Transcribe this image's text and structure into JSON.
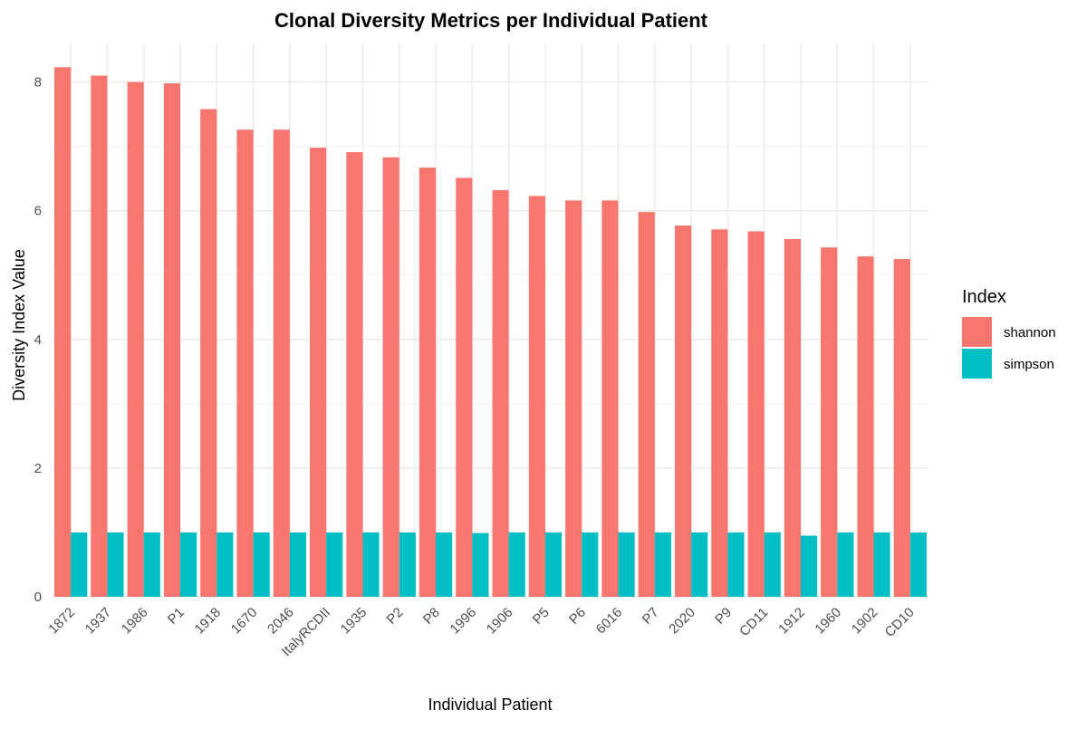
{
  "chart_data": {
    "type": "bar",
    "title": "Clonal Diversity Metrics per Individual Patient",
    "xlabel": "Individual Patient",
    "ylabel": "Diversity Index Value",
    "ylim": [
      0,
      8.6
    ],
    "yticks": [
      0,
      2,
      4,
      6,
      8
    ],
    "grid": true,
    "legend": {
      "title": "Index",
      "placement": "right"
    },
    "categories": [
      "1872",
      "1937",
      "1986",
      "P1",
      "1918",
      "1670",
      "2046",
      "ItalyRCDII",
      "1935",
      "P2",
      "P8",
      "1996",
      "1906",
      "P5",
      "P6",
      "6016",
      "P7",
      "2020",
      "P9",
      "CD11",
      "1912",
      "1960",
      "1902",
      "CD10"
    ],
    "series": [
      {
        "name": "shannon",
        "color": "#F8766D",
        "values": [
          8.23,
          8.1,
          8.0,
          7.98,
          7.58,
          7.26,
          7.26,
          6.98,
          6.91,
          6.83,
          6.67,
          6.51,
          6.32,
          6.23,
          6.16,
          6.16,
          5.98,
          5.77,
          5.71,
          5.68,
          5.56,
          5.43,
          5.29,
          5.25
        ]
      },
      {
        "name": "simpson",
        "color": "#00BFC4",
        "values": [
          1.0,
          1.0,
          1.0,
          1.0,
          1.0,
          1.0,
          1.0,
          1.0,
          1.0,
          1.0,
          1.0,
          0.99,
          1.0,
          1.0,
          1.0,
          1.0,
          1.0,
          1.0,
          1.0,
          1.0,
          0.95,
          1.0,
          1.0,
          1.0
        ]
      }
    ]
  }
}
